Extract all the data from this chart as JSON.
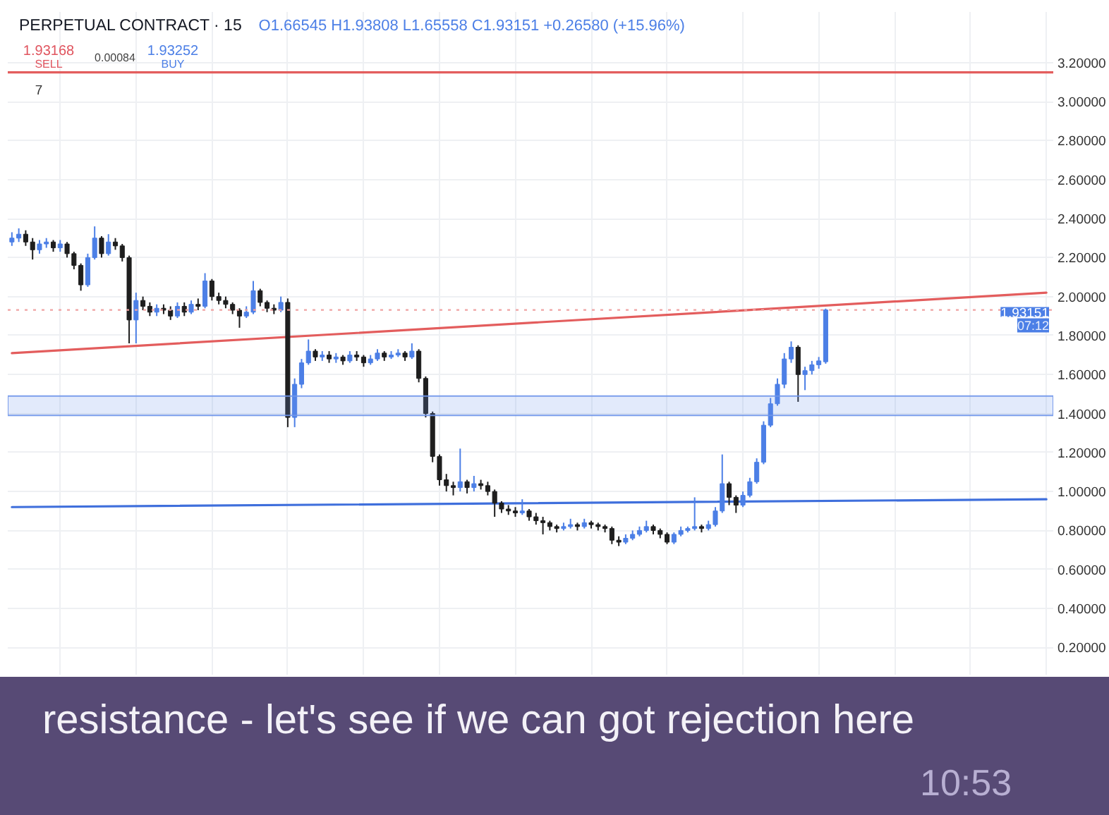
{
  "chart_data": {
    "type": "candlestick",
    "title": "PERPETUAL CONTRACT · 15",
    "subtitle": "O1.66545 H1.93808 L1.65558 C1.93151 +0.26580 (+15.96%)",
    "categories": [
      null,
      null,
      null,
      null,
      null,
      null,
      null,
      null,
      null,
      null,
      null,
      null,
      null,
      null,
      null,
      null,
      null,
      null,
      null,
      null,
      null,
      null,
      null,
      null,
      null,
      null,
      null,
      null,
      null,
      null,
      null,
      null,
      null,
      null,
      null,
      null,
      null,
      null,
      null,
      null,
      null,
      null,
      null,
      null,
      null,
      null,
      null,
      null,
      null,
      null,
      null,
      null,
      null,
      null,
      null,
      null,
      null,
      null,
      null,
      null,
      null,
      null,
      null,
      null,
      null,
      null,
      null,
      null,
      null,
      null,
      null,
      null,
      null,
      null,
      null,
      null,
      null,
      null,
      null,
      null,
      null,
      null,
      null,
      null,
      null,
      null,
      null,
      null,
      null,
      null,
      null,
      null,
      null,
      null,
      null,
      null,
      null,
      null,
      null,
      null,
      null,
      null,
      null,
      null,
      null,
      null,
      null,
      null,
      null,
      null,
      null,
      null,
      null,
      null,
      null,
      null,
      null,
      null,
      null,
      null,
      null,
      null,
      null,
      null,
      null,
      null,
      null,
      null,
      null,
      null,
      null,
      null,
      null,
      null,
      null,
      null,
      null,
      null,
      null,
      null,
      null,
      null,
      null,
      null,
      null,
      null,
      null,
      null,
      null,
      null,
      null
    ],
    "ohlc": [
      [
        2.28,
        2.33,
        2.26,
        2.3
      ],
      [
        2.3,
        2.35,
        2.28,
        2.32
      ],
      [
        2.32,
        2.34,
        2.26,
        2.28
      ],
      [
        2.28,
        2.3,
        2.19,
        2.24
      ],
      [
        2.24,
        2.29,
        2.22,
        2.27
      ],
      [
        2.27,
        2.3,
        2.25,
        2.28
      ],
      [
        2.28,
        2.29,
        2.23,
        2.25
      ],
      [
        2.25,
        2.29,
        2.23,
        2.27
      ],
      [
        2.27,
        2.28,
        2.2,
        2.22
      ],
      [
        2.22,
        2.23,
        2.14,
        2.16
      ],
      [
        2.16,
        2.17,
        2.03,
        2.06
      ],
      [
        2.06,
        2.22,
        2.05,
        2.2
      ],
      [
        2.2,
        2.36,
        2.19,
        2.3
      ],
      [
        2.3,
        2.31,
        2.2,
        2.22
      ],
      [
        2.22,
        2.32,
        2.21,
        2.28
      ],
      [
        2.28,
        2.3,
        2.24,
        2.26
      ],
      [
        2.26,
        2.27,
        2.18,
        2.2
      ],
      [
        2.2,
        2.21,
        1.76,
        1.88
      ],
      [
        1.88,
        2.02,
        1.76,
        1.98
      ],
      [
        1.98,
        2.0,
        1.93,
        1.95
      ],
      [
        1.95,
        1.97,
        1.9,
        1.92
      ],
      [
        1.92,
        1.96,
        1.9,
        1.94
      ],
      [
        1.94,
        1.96,
        1.91,
        1.93
      ],
      [
        1.93,
        1.95,
        1.88,
        1.9
      ],
      [
        1.9,
        1.97,
        1.89,
        1.95
      ],
      [
        1.95,
        1.97,
        1.9,
        1.92
      ],
      [
        1.92,
        1.98,
        1.91,
        1.96
      ],
      [
        1.96,
        1.99,
        1.93,
        1.95
      ],
      [
        1.95,
        2.12,
        1.94,
        2.08
      ],
      [
        2.08,
        2.09,
        1.98,
        2.0
      ],
      [
        2.0,
        2.02,
        1.96,
        1.98
      ],
      [
        1.98,
        2.0,
        1.94,
        1.96
      ],
      [
        1.96,
        1.97,
        1.91,
        1.93
      ],
      [
        1.93,
        1.94,
        1.84,
        1.9
      ],
      [
        1.9,
        1.95,
        1.89,
        1.92
      ],
      [
        1.92,
        2.08,
        1.91,
        2.03
      ],
      [
        2.03,
        2.04,
        1.95,
        1.97
      ],
      [
        1.97,
        1.98,
        1.92,
        1.94
      ],
      [
        1.94,
        1.96,
        1.91,
        1.93
      ],
      [
        1.93,
        2.0,
        1.92,
        1.97
      ],
      [
        1.97,
        1.99,
        1.33,
        1.38
      ],
      [
        1.38,
        1.58,
        1.33,
        1.55
      ],
      [
        1.55,
        1.68,
        1.53,
        1.66
      ],
      [
        1.66,
        1.78,
        1.65,
        1.72
      ],
      [
        1.72,
        1.73,
        1.67,
        1.69
      ],
      [
        1.69,
        1.72,
        1.67,
        1.7
      ],
      [
        1.7,
        1.72,
        1.66,
        1.68
      ],
      [
        1.68,
        1.71,
        1.66,
        1.69
      ],
      [
        1.69,
        1.7,
        1.65,
        1.67
      ],
      [
        1.67,
        1.72,
        1.66,
        1.7
      ],
      [
        1.7,
        1.72,
        1.67,
        1.69
      ],
      [
        1.69,
        1.7,
        1.64,
        1.66
      ],
      [
        1.66,
        1.7,
        1.65,
        1.68
      ],
      [
        1.68,
        1.73,
        1.67,
        1.71
      ],
      [
        1.71,
        1.72,
        1.67,
        1.69
      ],
      [
        1.69,
        1.72,
        1.68,
        1.7
      ],
      [
        1.7,
        1.73,
        1.69,
        1.71
      ],
      [
        1.71,
        1.72,
        1.67,
        1.69
      ],
      [
        1.69,
        1.76,
        1.68,
        1.72
      ],
      [
        1.72,
        1.73,
        1.56,
        1.58
      ],
      [
        1.58,
        1.59,
        1.38,
        1.4
      ],
      [
        1.4,
        1.41,
        1.15,
        1.18
      ],
      [
        1.18,
        1.19,
        1.03,
        1.06
      ],
      [
        1.06,
        1.09,
        1.0,
        1.03
      ],
      [
        1.03,
        1.05,
        0.98,
        1.02
      ],
      [
        1.02,
        1.22,
        1.0,
        1.05
      ],
      [
        1.05,
        1.06,
        0.99,
        1.02
      ],
      [
        1.02,
        1.08,
        1.0,
        1.04
      ],
      [
        1.04,
        1.06,
        1.01,
        1.03
      ],
      [
        1.03,
        1.05,
        0.98,
        1.0
      ],
      [
        1.0,
        1.01,
        0.87,
        0.94
      ],
      [
        0.94,
        0.95,
        0.89,
        0.91
      ],
      [
        0.91,
        0.93,
        0.88,
        0.9
      ],
      [
        0.9,
        0.92,
        0.87,
        0.89
      ],
      [
        0.89,
        0.96,
        0.88,
        0.9
      ],
      [
        0.9,
        0.91,
        0.85,
        0.87
      ],
      [
        0.87,
        0.89,
        0.83,
        0.85
      ],
      [
        0.85,
        0.87,
        0.78,
        0.84
      ],
      [
        0.84,
        0.85,
        0.8,
        0.82
      ],
      [
        0.82,
        0.83,
        0.79,
        0.81
      ],
      [
        0.81,
        0.84,
        0.8,
        0.82
      ],
      [
        0.82,
        0.86,
        0.81,
        0.83
      ],
      [
        0.83,
        0.84,
        0.8,
        0.82
      ],
      [
        0.82,
        0.86,
        0.81,
        0.84
      ],
      [
        0.84,
        0.85,
        0.81,
        0.83
      ],
      [
        0.83,
        0.84,
        0.8,
        0.82
      ],
      [
        0.82,
        0.83,
        0.79,
        0.81
      ],
      [
        0.81,
        0.82,
        0.73,
        0.75
      ],
      [
        0.75,
        0.77,
        0.72,
        0.74
      ],
      [
        0.74,
        0.78,
        0.73,
        0.76
      ],
      [
        0.76,
        0.8,
        0.75,
        0.78
      ],
      [
        0.78,
        0.82,
        0.77,
        0.8
      ],
      [
        0.8,
        0.85,
        0.79,
        0.82
      ],
      [
        0.82,
        0.83,
        0.78,
        0.8
      ],
      [
        0.8,
        0.81,
        0.76,
        0.78
      ],
      [
        0.78,
        0.79,
        0.73,
        0.74
      ],
      [
        0.74,
        0.79,
        0.73,
        0.78
      ],
      [
        0.78,
        0.82,
        0.77,
        0.8
      ],
      [
        0.8,
        0.82,
        0.79,
        0.81
      ],
      [
        0.81,
        0.97,
        0.8,
        0.82
      ],
      [
        0.82,
        0.83,
        0.79,
        0.81
      ],
      [
        0.81,
        0.85,
        0.8,
        0.83
      ],
      [
        0.83,
        0.92,
        0.82,
        0.9
      ],
      [
        0.9,
        1.19,
        0.89,
        1.04
      ],
      [
        1.04,
        1.05,
        0.93,
        0.97
      ],
      [
        0.97,
        0.98,
        0.89,
        0.93
      ],
      [
        0.93,
        1.0,
        0.92,
        0.98
      ],
      [
        0.98,
        1.07,
        0.97,
        1.05
      ],
      [
        1.05,
        1.17,
        1.04,
        1.15
      ],
      [
        1.15,
        1.36,
        1.14,
        1.34
      ],
      [
        1.34,
        1.48,
        1.33,
        1.45
      ],
      [
        1.45,
        1.58,
        1.44,
        1.55
      ],
      [
        1.55,
        1.71,
        1.53,
        1.68
      ],
      [
        1.68,
        1.77,
        1.66,
        1.74
      ],
      [
        1.74,
        1.75,
        1.46,
        1.6
      ],
      [
        1.6,
        1.64,
        1.52,
        1.62
      ],
      [
        1.62,
        1.67,
        1.6,
        1.65
      ],
      [
        1.65,
        1.69,
        1.63,
        1.67
      ],
      [
        1.66545,
        1.93808,
        1.65558,
        1.93151
      ],
      null,
      null,
      null,
      null,
      null,
      null,
      null,
      null,
      null,
      null,
      null,
      null,
      null,
      null,
      null,
      null,
      null,
      null,
      null,
      null,
      null,
      null,
      null,
      null,
      null,
      null,
      null,
      null,
      null,
      null,
      null,
      null
    ],
    "colors": [
      "#4c7fe6",
      "#4c7fe6",
      "#1e1e1e",
      "#1e1e1e",
      "#4c7fe6",
      "#4c7fe6",
      "#1e1e1e",
      "#4c7fe6",
      "#1e1e1e",
      "#1e1e1e",
      "#1e1e1e",
      "#4c7fe6",
      "#4c7fe6",
      "#1e1e1e",
      "#4c7fe6",
      "#1e1e1e",
      "#1e1e1e",
      "#1e1e1e",
      "#4c7fe6",
      "#1e1e1e",
      "#1e1e1e",
      "#4c7fe6",
      "#1e1e1e",
      "#1e1e1e",
      "#4c7fe6",
      "#1e1e1e",
      "#4c7fe6",
      "#1e1e1e",
      "#4c7fe6",
      "#1e1e1e",
      "#1e1e1e",
      "#1e1e1e",
      "#1e1e1e",
      "#1e1e1e",
      "#4c7fe6",
      "#4c7fe6",
      "#1e1e1e",
      "#1e1e1e",
      "#1e1e1e",
      "#4c7fe6",
      "#1e1e1e",
      "#4c7fe6",
      "#4c7fe6",
      "#4c7fe6",
      "#1e1e1e",
      "#4c7fe6",
      "#1e1e1e",
      "#4c7fe6",
      "#1e1e1e",
      "#4c7fe6",
      "#1e1e1e",
      "#1e1e1e",
      "#4c7fe6",
      "#4c7fe6",
      "#1e1e1e",
      "#4c7fe6",
      "#4c7fe6",
      "#1e1e1e",
      "#4c7fe6",
      "#1e1e1e",
      "#1e1e1e",
      "#1e1e1e",
      "#1e1e1e",
      "#1e1e1e",
      "#1e1e1e",
      "#4c7fe6",
      "#1e1e1e",
      "#4c7fe6",
      "#1e1e1e",
      "#1e1e1e",
      "#1e1e1e",
      "#1e1e1e",
      "#1e1e1e",
      "#1e1e1e",
      "#4c7fe6",
      "#1e1e1e",
      "#1e1e1e",
      "#1e1e1e",
      "#1e1e1e",
      "#1e1e1e",
      "#4c7fe6",
      "#4c7fe6",
      "#1e1e1e",
      "#4c7fe6",
      "#1e1e1e",
      "#1e1e1e",
      "#1e1e1e",
      "#1e1e1e",
      "#1e1e1e",
      "#4c7fe6",
      "#4c7fe6",
      "#4c7fe6",
      "#4c7fe6",
      "#1e1e1e",
      "#1e1e1e",
      "#1e1e1e",
      "#4c7fe6",
      "#4c7fe6",
      "#4c7fe6",
      "#4c7fe6",
      "#1e1e1e",
      "#4c7fe6",
      "#4c7fe6",
      "#4c7fe6",
      "#1e1e1e",
      "#1e1e1e",
      "#4c7fe6",
      "#4c7fe6",
      "#4c7fe6",
      "#4c7fe6",
      "#4c7fe6",
      "#4c7fe6",
      "#4c7fe6",
      "#4c7fe6",
      "#1e1e1e",
      "#4c7fe6",
      "#4c7fe6",
      "#4c7fe6",
      "#4c7fe6",
      null,
      null,
      null,
      null,
      null,
      null,
      null,
      null,
      null,
      null,
      null,
      null,
      null,
      null,
      null,
      null,
      null,
      null,
      null,
      null,
      null,
      null,
      null,
      null,
      null,
      null,
      null,
      null,
      null,
      null,
      null,
      null
    ],
    "series": [
      {
        "type": "line",
        "color": "#e35d5d",
        "values": [
          1.71,
          null,
          null,
          null,
          null,
          null,
          null,
          null,
          null,
          null,
          null,
          null,
          null,
          null,
          null,
          null,
          null,
          null,
          null,
          null,
          null,
          null,
          null,
          null,
          null,
          null,
          null,
          null,
          null,
          null,
          null,
          null,
          null,
          null,
          null,
          null,
          null,
          null,
          null,
          null,
          null,
          null,
          null,
          null,
          null,
          null,
          null,
          null,
          null,
          null,
          null,
          null,
          null,
          null,
          null,
          null,
          null,
          null,
          null,
          null,
          null,
          null,
          null,
          null,
          null,
          null,
          null,
          null,
          null,
          null,
          null,
          null,
          null,
          null,
          null,
          null,
          null,
          null,
          null,
          null,
          null,
          null,
          null,
          null,
          null,
          null,
          null,
          null,
          null,
          null,
          null,
          null,
          null,
          null,
          null,
          null,
          null,
          null,
          null,
          null,
          null,
          null,
          null,
          null,
          null,
          null,
          null,
          null,
          null,
          null,
          null,
          null,
          null,
          null,
          null,
          null,
          null,
          null,
          null,
          null,
          null,
          null,
          null,
          null,
          null,
          null,
          null,
          null,
          null,
          null,
          null,
          null,
          null,
          null,
          null,
          null,
          null,
          null,
          null,
          null,
          null,
          null,
          null,
          null,
          null,
          null,
          null,
          null,
          null,
          null,
          2.02
        ]
      },
      {
        "type": "line",
        "color": "#3f6fdc",
        "values": [
          0.92,
          null,
          null,
          null,
          null,
          null,
          null,
          null,
          null,
          null,
          null,
          null,
          null,
          null,
          null,
          null,
          null,
          null,
          null,
          null,
          null,
          null,
          null,
          null,
          null,
          null,
          null,
          null,
          null,
          null,
          null,
          null,
          null,
          null,
          null,
          null,
          null,
          null,
          null,
          null,
          null,
          null,
          null,
          null,
          null,
          null,
          null,
          null,
          null,
          null,
          null,
          null,
          null,
          null,
          null,
          null,
          null,
          null,
          null,
          null,
          null,
          null,
          null,
          null,
          null,
          null,
          null,
          null,
          null,
          null,
          null,
          null,
          null,
          null,
          null,
          null,
          null,
          null,
          null,
          null,
          null,
          null,
          null,
          null,
          null,
          null,
          null,
          null,
          null,
          null,
          null,
          null,
          null,
          null,
          null,
          null,
          null,
          null,
          null,
          null,
          null,
          null,
          null,
          null,
          null,
          null,
          null,
          null,
          null,
          null,
          null,
          null,
          null,
          null,
          null,
          null,
          null,
          null,
          null,
          null,
          null,
          null,
          null,
          null,
          null,
          null,
          null,
          null,
          null,
          null,
          null,
          null,
          null,
          null,
          null,
          null,
          null,
          null,
          null,
          null,
          null,
          null,
          null,
          null,
          null,
          null,
          null,
          null,
          null,
          null,
          0.96
        ]
      }
    ],
    "ylim": [
      0.06,
      3.46
    ],
    "yticks": [
      {
        "value": 0.2,
        "label": "0.20000"
      },
      {
        "value": 0.4,
        "label": "0.40000"
      },
      {
        "value": 0.6,
        "label": "0.60000"
      },
      {
        "value": 0.8,
        "label": "0.80000"
      },
      {
        "value": 1,
        "label": "1.00000"
      },
      {
        "value": 1.2,
        "label": "1.20000"
      },
      {
        "value": 1.4,
        "label": "1.40000"
      },
      {
        "value": 1.6,
        "label": "1.60000"
      },
      {
        "value": 1.8,
        "label": "1.80000"
      },
      {
        "value": 2,
        "label": "2.00000"
      },
      {
        "value": 2.2,
        "label": "2.20000"
      },
      {
        "value": 2.4,
        "label": "2.40000"
      },
      {
        "value": 2.6,
        "label": "2.60000"
      },
      {
        "value": 2.8,
        "label": "2.80000"
      },
      {
        "value": 3,
        "label": "3.00000"
      },
      {
        "value": 3.2,
        "label": "3.20000"
      }
    ],
    "ref_lines": [
      {
        "axis": "y",
        "value": 3.15,
        "color": "#e35d5d"
      },
      {
        "axis": "y",
        "value": 1.93151,
        "label": "1.93151",
        "color": "#f0a3a3",
        "line_style": "dotted"
      }
    ],
    "bands": [
      {
        "axis": "y",
        "from": 1.39,
        "to": 1.49,
        "color": "#6f95ea"
      }
    ],
    "annotations": [
      "1.93168",
      "SELL",
      "0.00084",
      "1.93252",
      "BUY",
      "7",
      "07:12",
      "resistance - let's see if we can got rejection here",
      "10:53"
    ],
    "grid": true,
    "tick_labels": "y"
  }
}
